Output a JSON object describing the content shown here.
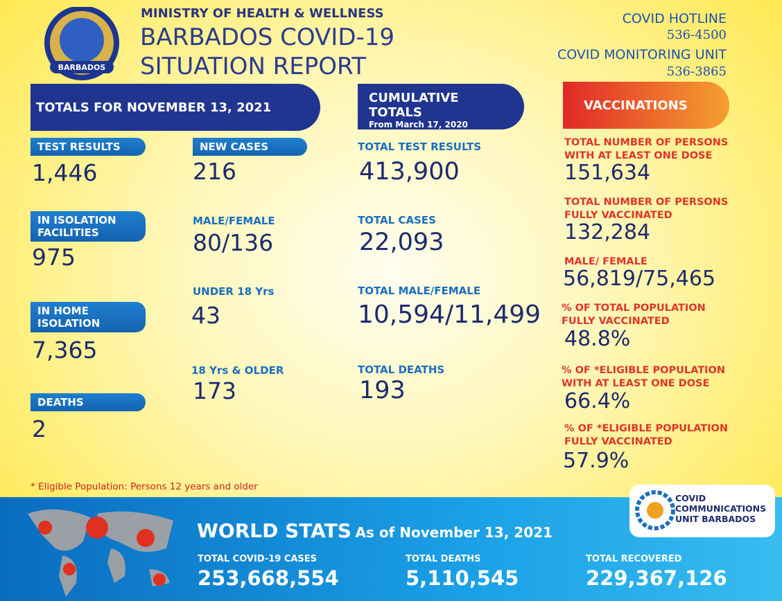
{
  "header": {
    "logo_text": "BARBADOS",
    "ministry": "MINISTRY OF HEALTH & WELLNESS",
    "title_line1": "BARBADOS COVID-19",
    "title_line2": "SITUATION REPORT"
  },
  "contacts": {
    "hotline_label": "COVID HOTLINE",
    "hotline_number": "536-4500",
    "monitoring_label": "COVID MONITORING UNIT",
    "monitoring_number": "536-3865"
  },
  "daily": {
    "banner": "TOTALS FOR NOVEMBER 13, 2021",
    "left": [
      {
        "label": "TEST RESULTS",
        "value": "1,446"
      },
      {
        "label": "IN ISOLATION FACILITIES",
        "value": "975"
      },
      {
        "label": "IN HOME ISOLATION",
        "value": "7,365"
      },
      {
        "label": "DEATHS",
        "value": "2"
      }
    ],
    "right": [
      {
        "label": "NEW CASES",
        "value": "216"
      },
      {
        "label": "MALE/FEMALE",
        "value": "80/136"
      },
      {
        "label": "UNDER 18 Yrs",
        "value": "43"
      },
      {
        "label": "18 Yrs & OLDER",
        "value": "173"
      }
    ]
  },
  "cumulative": {
    "banner": "CUMULATIVE TOTALS",
    "subtitle": "From March 17, 2020",
    "items": [
      {
        "label": "TOTAL TEST RESULTS",
        "value": "413,900"
      },
      {
        "label": "TOTAL CASES",
        "value": "22,093"
      },
      {
        "label": "TOTAL MALE/FEMALE",
        "value": "10,594/11,499"
      },
      {
        "label": "TOTAL DEATHS",
        "value": "193"
      }
    ]
  },
  "vaccinations": {
    "banner": "VACCINATIONS",
    "items": [
      {
        "label": "TOTAL NUMBER OF PERSONS WITH AT LEAST ONE DOSE",
        "value": "151,634"
      },
      {
        "label": "TOTAL NUMBER OF PERSONS FULLY VACCINATED",
        "value": "132,284"
      },
      {
        "label": "MALE/ FEMALE",
        "value": "56,819/75,465"
      },
      {
        "label": "% OF TOTAL POPULATION FULLY VACCINATED",
        "value": "48.8%"
      },
      {
        "label": "% OF *ELIGIBLE POPULATION WITH AT LEAST ONE DOSE",
        "value": "66.4%"
      },
      {
        "label": "% OF *ELIGIBLE POPULATION FULLY VACCINATED",
        "value": "57.9%"
      }
    ]
  },
  "footnote": "* Eligible Population: Persons 12 years and older",
  "world": {
    "title": "WORLD STATS",
    "date": "As of November 13, 2021",
    "items": [
      {
        "label": "TOTAL COVID-19 CASES",
        "value": "253,668,554"
      },
      {
        "label": "TOTAL DEATHS",
        "value": "5,110,545"
      },
      {
        "label": "TOTAL RECOVERED",
        "value": "229,367,126"
      }
    ]
  },
  "unit_logo": {
    "line1": "COVID",
    "line2": "COMMUNICATIONS",
    "line3": "UNIT BARBADOS"
  }
}
